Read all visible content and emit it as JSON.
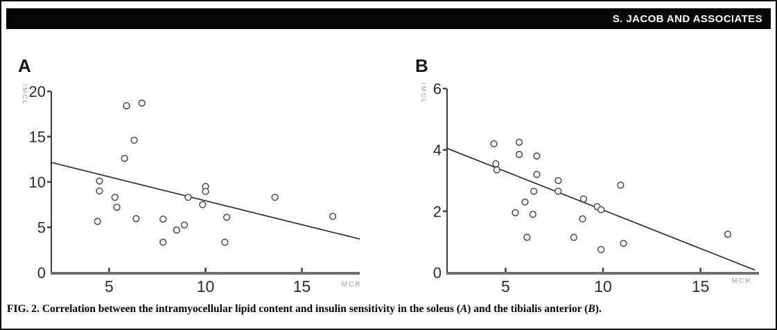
{
  "header": {
    "journal_label": "S. JACOB AND ASSOCIATES"
  },
  "caption": {
    "prefix": "FIG. 2.",
    "text_1": " Correlation between the intramyocellular lipid content and insulin sensitivity in the soleus (",
    "panel_a": "A",
    "text_2": ") and the tibialis anterior (",
    "panel_b": "B",
    "text_3": ")."
  },
  "colors": {
    "header_bg": "#050505",
    "header_text": "#ffffff",
    "y_axis": "#3c3c3c",
    "x_axis": "#6f6f6f",
    "tick": "#3f3f3f",
    "tick_label": "#2b2b2b",
    "marker_stroke": "#4a4a4a",
    "marker_fill": "#ffffff",
    "trend_line": "#2e2e2e",
    "axis_caption": "#9c9c9c"
  },
  "chart_data": [
    {
      "type": "scatter",
      "panel": "A",
      "title": "Soleus",
      "xlabel": "MCR",
      "ylabel": "IMCL",
      "xlim": [
        2,
        18
      ],
      "ylim": [
        0,
        20
      ],
      "x_ticks": [
        5,
        10,
        15
      ],
      "y_ticks": [
        0,
        5,
        10,
        15,
        20
      ],
      "grid": false,
      "legend": "none",
      "points": [
        [
          5.9,
          18.4
        ],
        [
          6.7,
          18.7
        ],
        [
          6.3,
          14.6
        ],
        [
          5.8,
          12.6
        ],
        [
          4.5,
          10.1
        ],
        [
          4.5,
          9.0
        ],
        [
          5.3,
          8.3
        ],
        [
          5.4,
          7.2
        ],
        [
          4.4,
          5.65
        ],
        [
          6.4,
          5.95
        ],
        [
          7.8,
          5.9
        ],
        [
          7.8,
          3.35
        ],
        [
          8.5,
          4.7
        ],
        [
          8.9,
          5.25
        ],
        [
          9.1,
          8.3
        ],
        [
          10.0,
          9.5
        ],
        [
          10.0,
          8.95
        ],
        [
          9.85,
          7.5
        ],
        [
          11.1,
          6.1
        ],
        [
          11.0,
          3.35
        ],
        [
          13.6,
          8.3
        ],
        [
          16.6,
          6.2
        ]
      ],
      "trend_line": {
        "x": [
          2,
          18
        ],
        "y": [
          12.15,
          3.7
        ]
      }
    },
    {
      "type": "scatter",
      "panel": "B",
      "title": "Tibialis anterior",
      "xlabel": "MCR",
      "ylabel": "IMCL",
      "xlim": [
        2,
        18
      ],
      "ylim": [
        0,
        6
      ],
      "x_ticks": [
        5,
        10,
        15
      ],
      "y_ticks": [
        0,
        2,
        4,
        6
      ],
      "grid": false,
      "legend": "none",
      "points": [
        [
          4.4,
          4.2
        ],
        [
          5.7,
          4.25
        ],
        [
          5.7,
          3.85
        ],
        [
          6.6,
          3.8
        ],
        [
          4.5,
          3.55
        ],
        [
          4.55,
          3.35
        ],
        [
          6.6,
          3.2
        ],
        [
          7.7,
          3.0
        ],
        [
          6.45,
          2.65
        ],
        [
          7.7,
          2.65
        ],
        [
          10.9,
          2.85
        ],
        [
          6.0,
          2.3
        ],
        [
          5.5,
          1.95
        ],
        [
          6.4,
          1.9
        ],
        [
          9.0,
          2.4
        ],
        [
          9.7,
          2.15
        ],
        [
          9.9,
          2.05
        ],
        [
          8.95,
          1.75
        ],
        [
          6.1,
          1.15
        ],
        [
          8.5,
          1.15
        ],
        [
          11.05,
          0.95
        ],
        [
          9.9,
          0.75
        ],
        [
          16.4,
          1.25
        ]
      ],
      "trend_line": {
        "x": [
          2,
          17.8
        ],
        "y": [
          4.05,
          0.08
        ]
      }
    }
  ]
}
